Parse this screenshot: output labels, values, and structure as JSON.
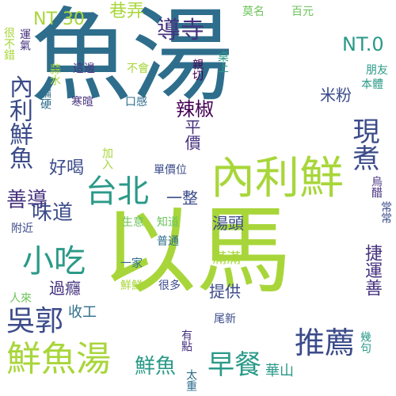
{
  "palette": {
    "lime": "#a8d63a",
    "green": "#6cc45a",
    "teal": "#2a9a88",
    "slate": "#2e6e8c",
    "indigo": "#3b4b8a",
    "purple": "#46327e",
    "dark": "#440154"
  },
  "words": [
    {
      "text": "以馬",
      "color": "lime"
    },
    {
      "text": "魚湯",
      "color": "slate"
    },
    {
      "text": "內利鮮",
      "color": "lime"
    },
    {
      "text": "鮮魚湯",
      "color": "lime"
    },
    {
      "text": "台北",
      "color": "teal"
    },
    {
      "text": "小吃",
      "color": "teal"
    },
    {
      "text": "吳郭",
      "color": "indigo"
    },
    {
      "text": "推薦",
      "color": "indigo"
    },
    {
      "text": "早餐",
      "color": "teal"
    },
    {
      "text": "現煮",
      "color": "indigo"
    },
    {
      "text": "內利鮮魚",
      "color": "indigo"
    },
    {
      "text": "導寺",
      "color": "purple"
    },
    {
      "text": "善導",
      "color": "purple"
    },
    {
      "text": "味道",
      "color": "indigo"
    },
    {
      "text": "好喝",
      "color": "indigo"
    },
    {
      "text": "鮮魚",
      "color": "teal"
    },
    {
      "text": "辣椒",
      "color": "dark"
    },
    {
      "text": "NT.0",
      "color": "teal"
    },
    {
      "text": "NT 30",
      "color": "lime"
    },
    {
      "text": "巷弄",
      "color": "lime"
    },
    {
      "text": "米粉",
      "color": "indigo"
    },
    {
      "text": "平價",
      "color": "purple"
    },
    {
      "text": "一整",
      "color": "indigo"
    },
    {
      "text": "湯頭",
      "color": "indigo"
    },
    {
      "text": "提供",
      "color": "indigo"
    },
    {
      "text": "滿滿",
      "color": "lime"
    },
    {
      "text": "過癮",
      "color": "purple"
    },
    {
      "text": "華山",
      "color": "teal"
    },
    {
      "text": "捷運善",
      "color": "purple"
    },
    {
      "text": "收工",
      "color": "slate"
    },
    {
      "text": "親切",
      "color": "dark"
    },
    {
      "text": "莫名",
      "color": "green"
    },
    {
      "text": "百元",
      "color": "green"
    },
    {
      "text": "桌上",
      "color": "teal"
    },
    {
      "text": "朋友",
      "color": "teal"
    },
    {
      "text": "本體",
      "color": "teal"
    },
    {
      "text": "烏醋",
      "color": "purple"
    },
    {
      "text": "常常",
      "color": "indigo"
    },
    {
      "text": "這邊",
      "color": "purple"
    },
    {
      "text": "不會",
      "color": "lime"
    },
    {
      "text": "寒暄",
      "color": "purple"
    },
    {
      "text": "口感",
      "color": "slate"
    },
    {
      "text": "很不錯",
      "color": "lime"
    },
    {
      "text": "運氣",
      "color": "purple"
    },
    {
      "text": "蒜水",
      "color": "lime"
    },
    {
      "text": "偏硬",
      "color": "slate"
    },
    {
      "text": "加入",
      "color": "lime"
    },
    {
      "text": "單價位",
      "color": "indigo"
    },
    {
      "text": "生意",
      "color": "green"
    },
    {
      "text": "知道",
      "color": "green"
    },
    {
      "text": "附近",
      "color": "indigo"
    },
    {
      "text": "普通",
      "color": "slate"
    },
    {
      "text": "一家",
      "color": "slate"
    },
    {
      "text": "人來",
      "color": "green"
    },
    {
      "text": "鮮鮮",
      "color": "lime"
    },
    {
      "text": "很多",
      "color": "indigo"
    },
    {
      "text": "尾新",
      "color": "indigo"
    },
    {
      "text": "幾句",
      "color": "teal"
    },
    {
      "text": "有點",
      "color": "purple"
    },
    {
      "text": "太重",
      "color": "slate"
    }
  ]
}
